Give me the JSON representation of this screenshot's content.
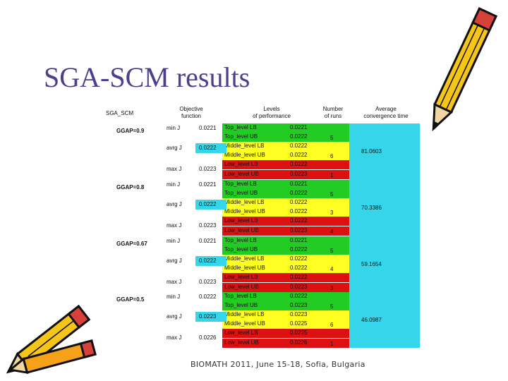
{
  "title": "SGA-SCM results",
  "footer": "BIOMATH 2011, June 15-18, Sofia, Bulgaria",
  "table": {
    "corner": "SGA_SCM",
    "headers": {
      "objective": "Objective\nfunction",
      "levels": "Levels\nof performance",
      "runs": "Number\nof runs",
      "convergence": "Average\nconvergence time"
    },
    "groups": [
      {
        "label": "GGAP=0.9",
        "objectives": [
          {
            "name": "min J",
            "value": "0.0221"
          },
          {
            "name": "avrg J",
            "value": "0.0222"
          },
          {
            "name": "max J",
            "value": "0.0223"
          }
        ],
        "levels": [
          {
            "name": "Top_level LB",
            "value": "0.0221",
            "color": "green"
          },
          {
            "name": "Top_level UB",
            "value": "0.0222",
            "color": "green"
          },
          {
            "name": "Middle_level LB",
            "value": "0.0222",
            "color": "yellow"
          },
          {
            "name": "Middle_level UB",
            "value": "0.0222",
            "color": "yellow"
          },
          {
            "name": "Low_level LB",
            "value": "0.0222",
            "color": "red"
          },
          {
            "name": "Low_level UB",
            "value": "0.0223",
            "color": "red"
          }
        ],
        "runs": [
          "5",
          "6",
          "1"
        ],
        "convergence": "81.0603"
      },
      {
        "label": "GGAP=0.8",
        "objectives": [
          {
            "name": "min J",
            "value": "0.0221"
          },
          {
            "name": "avrg J",
            "value": "0.0222"
          },
          {
            "name": "max J",
            "value": "0.0223"
          }
        ],
        "levels": [
          {
            "name": "Top_level LB",
            "value": "0.0221",
            "color": "green"
          },
          {
            "name": "Top_level UB",
            "value": "0.0222",
            "color": "green"
          },
          {
            "name": "Middle_level LB",
            "value": "0.0222",
            "color": "yellow"
          },
          {
            "name": "Middle_level UB",
            "value": "0.0222",
            "color": "yellow"
          },
          {
            "name": "Low_level LB",
            "value": "0.0222",
            "color": "red"
          },
          {
            "name": "Low_level UB",
            "value": "0.0223",
            "color": "red"
          }
        ],
        "runs": [
          "5",
          "3",
          "4"
        ],
        "convergence": "70.3386"
      },
      {
        "label": "GGAP=0.67",
        "objectives": [
          {
            "name": "min J",
            "value": "0.0221"
          },
          {
            "name": "avrg J",
            "value": "0.0222"
          },
          {
            "name": "max J",
            "value": "0.0223"
          }
        ],
        "levels": [
          {
            "name": "Top_level LB",
            "value": "0.0221",
            "color": "green"
          },
          {
            "name": "Top_level UB",
            "value": "0.0222",
            "color": "green"
          },
          {
            "name": "Middle_level LB",
            "value": "0.0222",
            "color": "yellow"
          },
          {
            "name": "Middle_level UB",
            "value": "0.0222",
            "color": "yellow"
          },
          {
            "name": "Low_level LB",
            "value": "0.0222",
            "color": "red"
          },
          {
            "name": "Low_level UB",
            "value": "0.0223",
            "color": "red"
          }
        ],
        "runs": [
          "5",
          "4",
          "3"
        ],
        "convergence": "59.1654"
      },
      {
        "label": "GGAP=0.5",
        "objectives": [
          {
            "name": "min J",
            "value": "0.0222"
          },
          {
            "name": "avrg J",
            "value": "0.0223"
          },
          {
            "name": "max J",
            "value": "0.0226"
          }
        ],
        "levels": [
          {
            "name": "Top_level LB",
            "value": "0.0222",
            "color": "green"
          },
          {
            "name": "Top_level UB",
            "value": "0.0223",
            "color": "green"
          },
          {
            "name": "Middle_level LB",
            "value": "0.0223",
            "color": "yellow"
          },
          {
            "name": "Middle_level UB",
            "value": "0.0225",
            "color": "yellow"
          },
          {
            "name": "Low_level LB",
            "value": "0.0225",
            "color": "red"
          },
          {
            "name": "Low_level UB",
            "value": "0.0226",
            "color": "red"
          }
        ],
        "runs": [
          "5",
          "6",
          "1"
        ],
        "convergence": "46.0987"
      }
    ]
  },
  "colors": {
    "green": "#22cc22",
    "yellow": "#ffff22",
    "red": "#dd1111",
    "cyan": "#35d6ea",
    "title": "#4b3f8f"
  },
  "decorations": [
    "pencil-icon",
    "pencil-icon",
    "pencil-icon"
  ]
}
